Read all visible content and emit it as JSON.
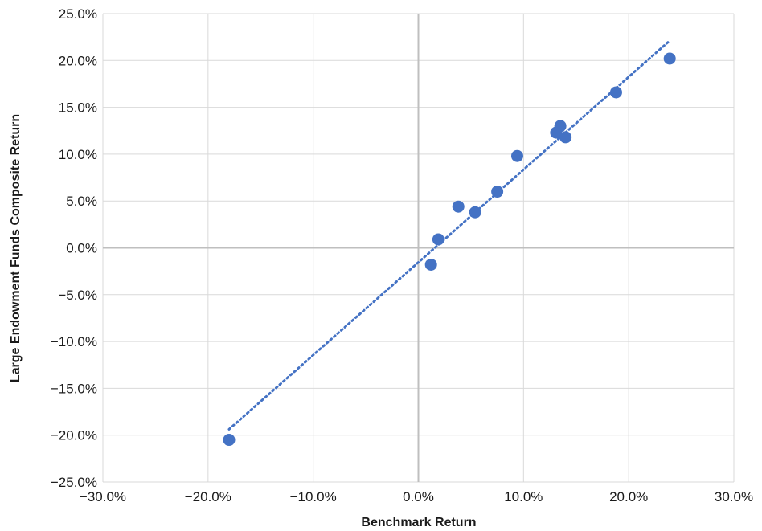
{
  "chart_data": {
    "type": "scatter",
    "title": "",
    "xlabel": "Benchmark Return",
    "ylabel": "Large Endowment Funds Composite Return",
    "xlim": [
      -0.3,
      0.3
    ],
    "ylim": [
      -0.25,
      0.25
    ],
    "x_ticks": [
      -0.3,
      -0.2,
      -0.1,
      0.0,
      0.1,
      0.2,
      0.3
    ],
    "y_ticks": [
      -0.25,
      -0.2,
      -0.15,
      -0.1,
      -0.05,
      0.0,
      0.05,
      0.1,
      0.15,
      0.2,
      0.25
    ],
    "x_tick_labels": [
      "−30.0%",
      "−20.0%",
      "−10.0%",
      "0.0%",
      "10.0%",
      "20.0%",
      "30.0%"
    ],
    "y_tick_labels": [
      "−25.0%",
      "−20.0%",
      "−15.0%",
      "−10.0%",
      "−5.0%",
      "0.0%",
      "5.0%",
      "10.0%",
      "15.0%",
      "20.0%",
      "25.0%"
    ],
    "grid": true,
    "series": [
      {
        "color": "#4472c4",
        "points": [
          {
            "x": -0.18,
            "y": -0.205
          },
          {
            "x": 0.012,
            "y": -0.018
          },
          {
            "x": 0.019,
            "y": 0.009
          },
          {
            "x": 0.038,
            "y": 0.044
          },
          {
            "x": 0.054,
            "y": 0.038
          },
          {
            "x": 0.075,
            "y": 0.06
          },
          {
            "x": 0.094,
            "y": 0.098
          },
          {
            "x": 0.131,
            "y": 0.123
          },
          {
            "x": 0.135,
            "y": 0.13
          },
          {
            "x": 0.14,
            "y": 0.118
          },
          {
            "x": 0.188,
            "y": 0.166
          },
          {
            "x": 0.239,
            "y": 0.202
          }
        ]
      }
    ],
    "trendline": {
      "style": "dotted",
      "color": "#4472c4",
      "x_start": -0.18,
      "x_end": 0.239,
      "slope": 0.99,
      "intercept": -0.0155
    }
  }
}
